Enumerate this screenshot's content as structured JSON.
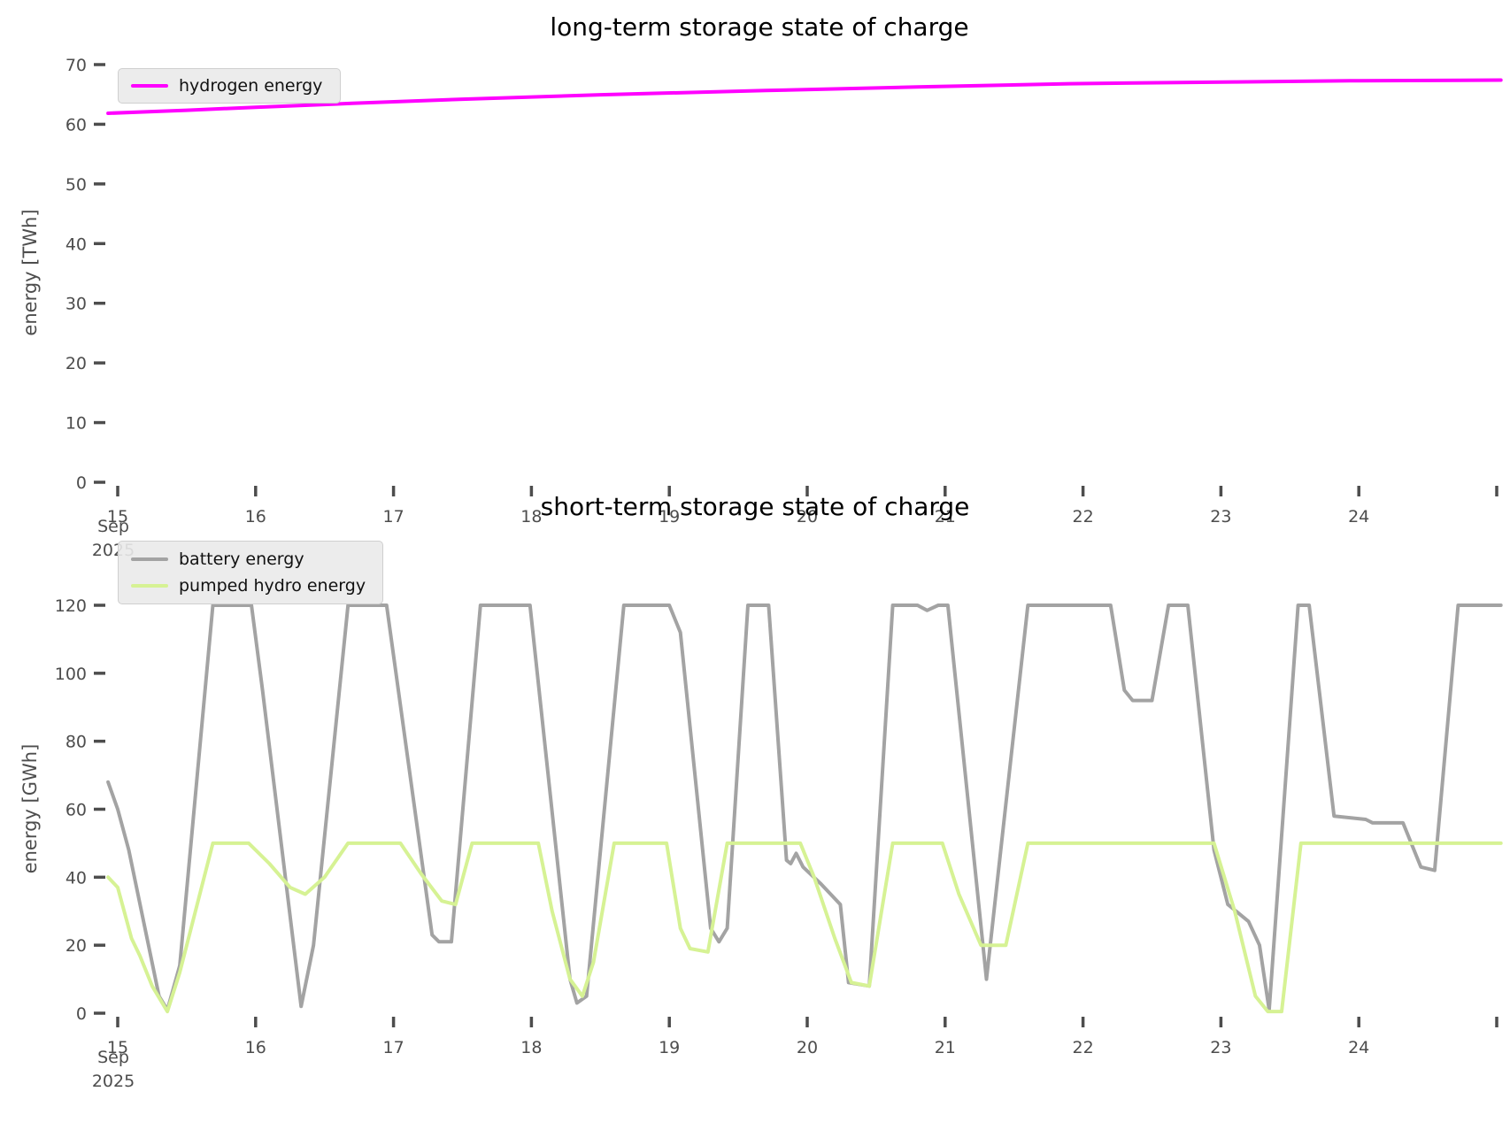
{
  "chart_data": [
    {
      "type": "line",
      "title": "long-term storage state of charge",
      "ylabel": "energy [TWh]",
      "month_label": "Sep",
      "year_label": "2025",
      "x_tick_labels": [
        "15",
        "16",
        "17",
        "18",
        "19",
        "20",
        "21",
        "22",
        "23",
        "24",
        ""
      ],
      "x_tick_values": [
        15,
        16,
        17,
        18,
        19,
        20,
        21,
        22,
        23,
        24,
        25
      ],
      "y_tick_labels": [
        "0",
        "10",
        "20",
        "30",
        "40",
        "50",
        "60",
        "70"
      ],
      "y_tick_values": [
        0,
        10,
        20,
        30,
        40,
        50,
        60,
        70
      ],
      "xlim": [
        14.93,
        25.03
      ],
      "ylim": [
        0,
        70
      ],
      "grid": false,
      "legend_position": "upper-left",
      "legend": [
        {
          "label": "hydrogen energy",
          "color": "#ff00ff"
        }
      ],
      "series": [
        {
          "name": "hydrogen energy",
          "color": "#ff00ff",
          "points": [
            [
              14.93,
              61.85
            ],
            [
              15.5,
              62.35
            ],
            [
              16,
              62.85
            ],
            [
              16.7,
              63.5
            ],
            [
              17.5,
              64.2
            ],
            [
              18.5,
              64.95
            ],
            [
              19.7,
              65.65
            ],
            [
              20.8,
              66.25
            ],
            [
              21.9,
              66.8
            ],
            [
              23.1,
              67.1
            ],
            [
              24,
              67.3
            ],
            [
              25.03,
              67.4
            ]
          ]
        }
      ]
    },
    {
      "type": "line",
      "title": "short-term storage state of charge",
      "ylabel": "energy [GWh]",
      "month_label": "Sep",
      "year_label": "2025",
      "x_tick_labels": [
        "15",
        "16",
        "17",
        "18",
        "19",
        "20",
        "21",
        "22",
        "23",
        "24",
        ""
      ],
      "x_tick_values": [
        15,
        16,
        17,
        18,
        19,
        20,
        21,
        22,
        23,
        24,
        25
      ],
      "y_tick_labels": [
        "0",
        "20",
        "40",
        "60",
        "80",
        "100",
        "120"
      ],
      "y_tick_values": [
        0,
        20,
        40,
        60,
        80,
        100,
        120
      ],
      "xlim": [
        14.93,
        25.03
      ],
      "ylim": [
        0,
        120
      ],
      "grid": false,
      "legend_position": "upper-left",
      "legend": [
        {
          "label": "battery energy",
          "color": "#a3a3a3"
        },
        {
          "label": "pumped hydro energy",
          "color": "#d6f294"
        }
      ],
      "series": [
        {
          "name": "battery energy",
          "color": "#a3a3a3",
          "points": [
            [
              14.93,
              68
            ],
            [
              15.0,
              60
            ],
            [
              15.08,
              48
            ],
            [
              15.3,
              5
            ],
            [
              15.36,
              1
            ],
            [
              15.45,
              14
            ],
            [
              15.69,
              120
            ],
            [
              15.97,
              120
            ],
            [
              16.05,
              95
            ],
            [
              16.33,
              2
            ],
            [
              16.42,
              20
            ],
            [
              16.67,
              120
            ],
            [
              16.95,
              120
            ],
            [
              17.28,
              23
            ],
            [
              17.33,
              21
            ],
            [
              17.42,
              21
            ],
            [
              17.63,
              120
            ],
            [
              17.99,
              120
            ],
            [
              18.28,
              10
            ],
            [
              18.33,
              3
            ],
            [
              18.4,
              5
            ],
            [
              18.67,
              120
            ],
            [
              19.0,
              120
            ],
            [
              19.08,
              112
            ],
            [
              19.3,
              25
            ],
            [
              19.36,
              21
            ],
            [
              19.42,
              25
            ],
            [
              19.57,
              120
            ],
            [
              19.72,
              120
            ],
            [
              19.85,
              45
            ],
            [
              19.88,
              44
            ],
            [
              19.92,
              47
            ],
            [
              19.97,
              43
            ],
            [
              20.1,
              38
            ],
            [
              20.24,
              32
            ],
            [
              20.3,
              9
            ],
            [
              20.45,
              8
            ],
            [
              20.62,
              120
            ],
            [
              20.8,
              120
            ],
            [
              20.87,
              118.5
            ],
            [
              20.95,
              120
            ],
            [
              21.02,
              120
            ],
            [
              21.3,
              10
            ],
            [
              21.6,
              120
            ],
            [
              22.2,
              120
            ],
            [
              22.3,
              95
            ],
            [
              22.36,
              92
            ],
            [
              22.5,
              92
            ],
            [
              22.62,
              120
            ],
            [
              22.76,
              120
            ],
            [
              22.95,
              48
            ],
            [
              23.05,
              32
            ],
            [
              23.2,
              27
            ],
            [
              23.28,
              20
            ],
            [
              23.35,
              1
            ],
            [
              23.56,
              120
            ],
            [
              23.64,
              120
            ],
            [
              23.82,
              58
            ],
            [
              24.05,
              57
            ],
            [
              24.1,
              56
            ],
            [
              24.32,
              56
            ],
            [
              24.45,
              43
            ],
            [
              24.55,
              42
            ],
            [
              24.72,
              120
            ],
            [
              25.03,
              120
            ]
          ]
        },
        {
          "name": "pumped hydro energy",
          "color": "#d6f294",
          "points": [
            [
              14.93,
              40
            ],
            [
              15.0,
              37
            ],
            [
              15.1,
              22
            ],
            [
              15.16,
              17
            ],
            [
              15.25,
              8
            ],
            [
              15.36,
              0.5
            ],
            [
              15.45,
              12
            ],
            [
              15.69,
              50
            ],
            [
              15.95,
              50
            ],
            [
              16.1,
              44
            ],
            [
              16.25,
              37
            ],
            [
              16.36,
              35
            ],
            [
              16.5,
              40
            ],
            [
              16.67,
              50
            ],
            [
              17.05,
              50
            ],
            [
              17.2,
              41
            ],
            [
              17.35,
              33
            ],
            [
              17.45,
              32
            ],
            [
              17.57,
              50
            ],
            [
              18.05,
              50
            ],
            [
              18.15,
              30
            ],
            [
              18.28,
              10
            ],
            [
              18.37,
              5
            ],
            [
              18.45,
              15
            ],
            [
              18.6,
              50
            ],
            [
              18.98,
              50
            ],
            [
              19.08,
              25
            ],
            [
              19.15,
              19
            ],
            [
              19.28,
              18
            ],
            [
              19.42,
              50
            ],
            [
              19.95,
              50
            ],
            [
              20.05,
              40
            ],
            [
              20.2,
              22
            ],
            [
              20.32,
              9
            ],
            [
              20.45,
              8
            ],
            [
              20.62,
              50
            ],
            [
              20.98,
              50
            ],
            [
              21.1,
              35
            ],
            [
              21.26,
              20
            ],
            [
              21.44,
              20
            ],
            [
              21.6,
              50
            ],
            [
              22.95,
              50
            ],
            [
              23.1,
              30
            ],
            [
              23.25,
              5
            ],
            [
              23.34,
              0.5
            ],
            [
              23.44,
              0.5
            ],
            [
              23.58,
              50
            ],
            [
              25.03,
              50
            ]
          ]
        }
      ]
    }
  ],
  "colors": {
    "tick": "#4d4d4d",
    "title": "#000000",
    "legend_bg": "#eaeaea"
  }
}
